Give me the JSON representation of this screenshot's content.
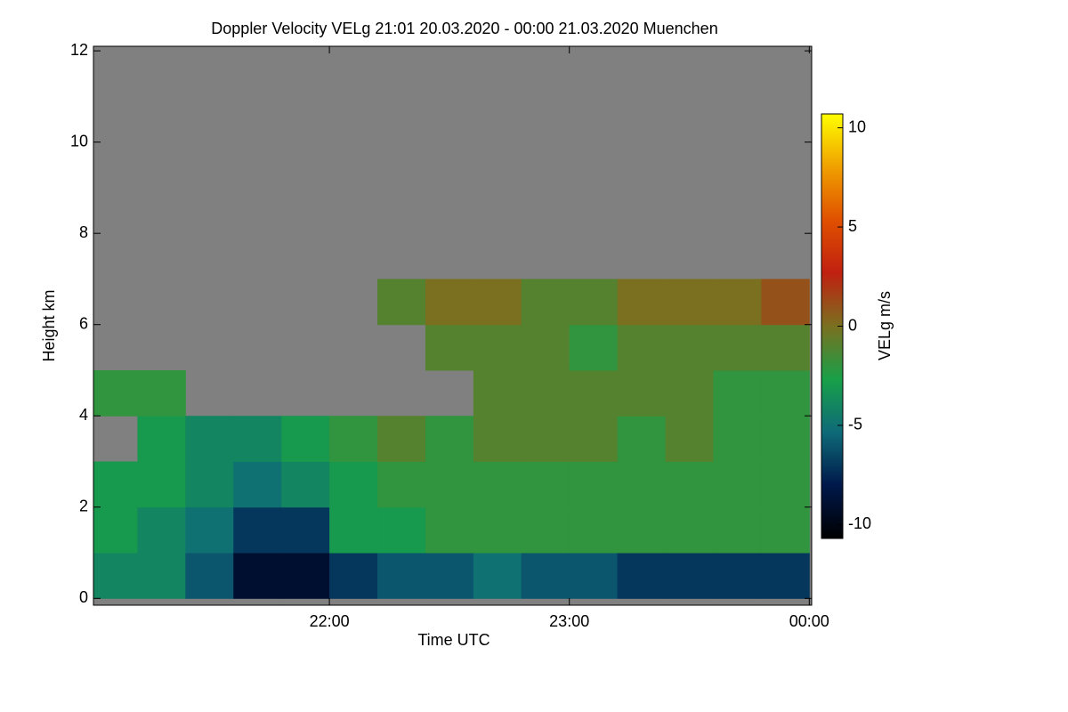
{
  "chart_data": {
    "type": "heatmap",
    "title": "Doppler Velocity VELg   21:01 20.03.2020 - 00:00 21.03.2020 Muenchen",
    "x_label": "Time UTC",
    "y_label": "Height km",
    "colorbar_label": "VELg m/s",
    "x": [
      21.1,
      21.3,
      21.5,
      21.7,
      21.9,
      22.1,
      22.3,
      22.5,
      22.7,
      22.9,
      23.1,
      23.3,
      23.5,
      23.7,
      23.9
    ],
    "y": [
      0.5,
      1.5,
      2.5,
      3.5,
      4.5,
      5.5,
      6.5,
      7.5,
      8.5,
      9.5,
      10.5,
      11.5
    ],
    "z": [
      [
        -4,
        -3,
        -3,
        null,
        -2,
        null,
        null,
        null,
        null,
        null,
        null,
        null
      ],
      [
        -4,
        -4,
        -3,
        -3,
        -2,
        null,
        null,
        null,
        null,
        null,
        null,
        null
      ],
      [
        -6,
        -5,
        -4,
        -4,
        null,
        null,
        null,
        null,
        null,
        null,
        null,
        null
      ],
      [
        -9,
        -7,
        -5,
        -4,
        null,
        null,
        null,
        null,
        null,
        null,
        null,
        null
      ],
      [
        -9,
        -7,
        -4,
        -3,
        null,
        null,
        null,
        null,
        null,
        null,
        null,
        null
      ],
      [
        -7,
        -3,
        -3,
        -2,
        null,
        null,
        null,
        null,
        null,
        null,
        null,
        null
      ],
      [
        -6,
        -3,
        -2,
        -1,
        null,
        null,
        -1,
        null,
        null,
        null,
        null,
        null
      ],
      [
        -6,
        -2,
        -2,
        -2,
        null,
        -1,
        0,
        null,
        null,
        null,
        null,
        null
      ],
      [
        -5,
        -2,
        -2,
        -1,
        -1,
        -1,
        0,
        null,
        null,
        null,
        null,
        null
      ],
      [
        -6,
        -2,
        -2,
        -1,
        -1,
        -1,
        -1,
        null,
        null,
        null,
        null,
        null
      ],
      [
        -6,
        -2,
        -2,
        -1,
        -1,
        -2,
        -1,
        null,
        null,
        null,
        null,
        null
      ],
      [
        -7,
        -2,
        -2,
        -2,
        -1,
        -1,
        0,
        null,
        null,
        null,
        null,
        null
      ],
      [
        -7,
        -2,
        -2,
        -1,
        -1,
        -1,
        0,
        null,
        null,
        null,
        null,
        null
      ],
      [
        -7,
        -2,
        -2,
        -2,
        -2,
        -1,
        0,
        null,
        null,
        null,
        null,
        null
      ],
      [
        -7,
        -2,
        -2,
        -2,
        -2,
        -1,
        1,
        null,
        null,
        null,
        null,
        null
      ]
    ],
    "xlim": [
      21.0167,
      24.01
    ],
    "xticks": [
      {
        "value": 22,
        "label": "22:00"
      },
      {
        "value": 23,
        "label": "23:00"
      },
      {
        "value": 24,
        "label": "00:00"
      }
    ],
    "ylim": [
      -0.15,
      12.1
    ],
    "yticks": [
      0,
      2,
      4,
      6,
      8,
      10,
      12
    ],
    "zlim": [
      -10.7,
      10.7
    ],
    "zticks": [
      -10,
      -5,
      0,
      5,
      10
    ],
    "colorscale": [
      "#000000",
      "#00184a",
      "#0e6a78",
      "#18a048",
      "#7a7020",
      "#c02010",
      "#e05000",
      "#f0a000",
      "#ffff00"
    ],
    "nodata_color": "#808080"
  }
}
